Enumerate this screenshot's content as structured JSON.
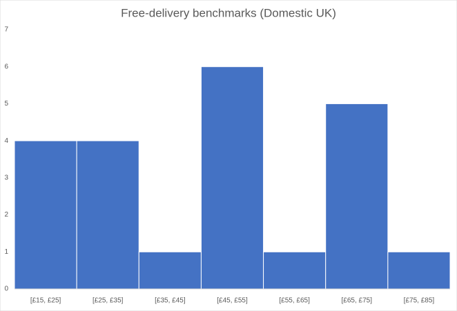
{
  "chart_data": {
    "type": "histogram",
    "title": "Free-delivery benchmarks (Domestic UK)",
    "categories": [
      "[£15, £25]",
      "[£25, £35]",
      "[£35, £45]",
      "[£45, £55]",
      "[£55, £65]",
      "[£65, £75]",
      "[£75, £85]"
    ],
    "values": [
      4,
      4,
      1,
      6,
      1,
      5,
      1
    ],
    "color": "#4472c4",
    "ylim": [
      0,
      7
    ],
    "yticks": [
      0,
      1,
      2,
      3,
      4,
      5,
      6,
      7
    ],
    "grid": false
  }
}
